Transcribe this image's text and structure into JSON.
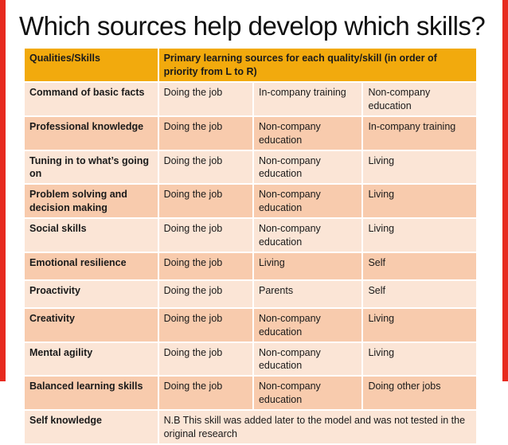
{
  "slide": {
    "title": "Which sources help develop which skills?"
  },
  "colors": {
    "edge_red": "#E72A1E",
    "header_gold": "#F2AA0D",
    "row_light": "#FBE5D6",
    "row_dark": "#F8CBAD",
    "grid_white": "#FFFFFF",
    "text": "#1A1A1A"
  },
  "table": {
    "header": {
      "qualities": "Qualities/Skills",
      "sources": "Primary learning sources for each  quality/skill (in order of priority from L to R)"
    },
    "rows": [
      {
        "skill": "Command of basic facts",
        "sources": [
          "Doing the job",
          "In-company training",
          "Non-company education"
        ],
        "shade": "light"
      },
      {
        "skill": "Professional knowledge",
        "sources": [
          "Doing the job",
          "Non-company education",
          "In-company training"
        ],
        "shade": "dark"
      },
      {
        "skill": "Tuning in to what’s going on",
        "sources": [
          "Doing the job",
          "Non-company education",
          "Living"
        ],
        "shade": "light"
      },
      {
        "skill": "Problem solving and decision making",
        "sources": [
          "Doing the job",
          "Non-company education",
          "Living"
        ],
        "shade": "dark"
      },
      {
        "skill": "Social skills",
        "sources": [
          "Doing the job",
          "Non-company education",
          "Living"
        ],
        "shade": "light"
      },
      {
        "skill": "Emotional resilience",
        "sources": [
          "Doing the job",
          "Living",
          "Self"
        ],
        "shade": "dark"
      },
      {
        "skill": "Proactivity",
        "sources": [
          "Doing the job",
          "Parents",
          "Self"
        ],
        "shade": "light"
      },
      {
        "skill": "Creativity",
        "sources": [
          "Doing the job",
          "Non-company education",
          "Living"
        ],
        "shade": "dark"
      },
      {
        "skill": "Mental agility",
        "sources": [
          "Doing the job",
          "Non-company education",
          "Living"
        ],
        "shade": "light"
      },
      {
        "skill": "Balanced learning skills",
        "sources": [
          "Doing the job",
          "Non-company education",
          "Doing other jobs"
        ],
        "shade": "dark"
      },
      {
        "skill": "Self knowledge",
        "note": "N.B This skill was added later to the model and was not tested in the original research",
        "shade": "light"
      }
    ]
  }
}
